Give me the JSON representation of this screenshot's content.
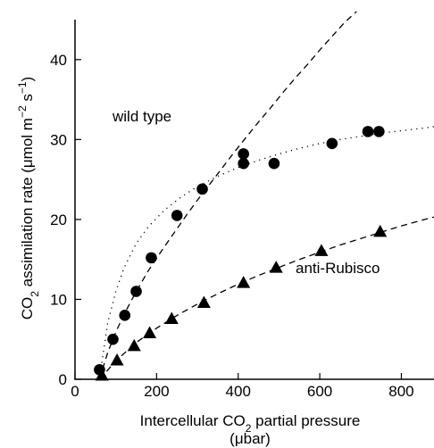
{
  "chart_data": {
    "type": "scatter",
    "xlabel": "Intercellular CO₂ partial pressure (μbar)",
    "xlabel_line1_prefix": "Intercellular CO",
    "xlabel_line1_sub": "2",
    "xlabel_line1_suffix": " partial pressure",
    "xlabel_line2": "(μbar)",
    "ylabel": "CO₂ assimilation rate (μmol m⁻² s⁻¹)",
    "ylabel_prefix": "CO",
    "ylabel_sub": "2",
    "ylabel_mid": " assimilation rate (μmol m",
    "ylabel_sup1": "−2",
    "ylabel_mid2": " s",
    "ylabel_sup2": "−1",
    "ylabel_suffix": ")",
    "xlim": [
      0,
      880
    ],
    "ylim": [
      0,
      45
    ],
    "xticks": [
      0,
      200,
      400,
      600,
      800
    ],
    "yticks": [
      0,
      10,
      20,
      30,
      40
    ],
    "grid": false,
    "annotations": [
      "wild type",
      "anti-Rubisco"
    ],
    "series": [
      {
        "name": "wild type",
        "marker": "circle",
        "x": [
          60,
          93,
          122,
          150,
          187,
          250,
          312,
          413,
          413,
          488,
          630,
          718,
          745
        ],
        "y": [
          1.2,
          5,
          8,
          11,
          15.2,
          20.5,
          23.8,
          28.2,
          27,
          27,
          29.5,
          31,
          31
        ]
      },
      {
        "name": "anti-Rubisco",
        "marker": "triangle",
        "x": [
          66,
          103,
          145,
          183,
          237,
          316,
          413,
          493,
          604,
          748
        ],
        "y": [
          0.5,
          2.4,
          4.2,
          5.8,
          7.6,
          9.6,
          12.1,
          14,
          16.1,
          18.5
        ]
      }
    ],
    "fits": [
      {
        "style": "dashed",
        "x": [
          60,
          80,
          100,
          120,
          150,
          180,
          210,
          240,
          270,
          300,
          330,
          360,
          390,
          420,
          450,
          480,
          510,
          540,
          570,
          600,
          630,
          660,
          690
        ],
        "y": [
          0.0,
          3.3,
          5.9,
          8.1,
          11.0,
          13.6,
          15.9,
          18.1,
          20.3,
          22.4,
          24.4,
          26.4,
          28.4,
          30.3,
          32.2,
          34.0,
          35.9,
          37.7,
          39.4,
          41.2,
          42.9,
          44.6,
          46.0
        ]
      },
      {
        "style": "dotted",
        "x": [
          60,
          80,
          100,
          120,
          150,
          180,
          220,
          260,
          300,
          350,
          400,
          450,
          500,
          550,
          600,
          650,
          700,
          750,
          800,
          850,
          880
        ],
        "y": [
          0.0,
          7.0,
          11.0,
          13.9,
          17.0,
          19.1,
          21.2,
          22.8,
          24.1,
          25.4,
          26.5,
          27.4,
          28.2,
          28.9,
          29.5,
          30.0,
          30.4,
          30.8,
          31.1,
          31.4,
          31.6
        ]
      },
      {
        "style": "dashed",
        "x": [
          60,
          100,
          150,
          200,
          250,
          300,
          350,
          400,
          450,
          500,
          550,
          600,
          650,
          700,
          750,
          800,
          850,
          880
        ],
        "y": [
          0.0,
          2.3,
          4.6,
          6.4,
          8.0,
          9.4,
          10.7,
          11.9,
          13.0,
          14.0,
          15.0,
          15.9,
          16.8,
          17.6,
          18.4,
          19.2,
          19.9,
          20.3
        ]
      }
    ]
  }
}
